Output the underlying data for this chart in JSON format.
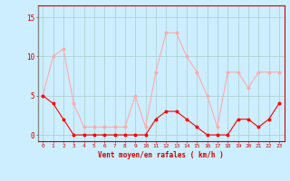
{
  "x": [
    0,
    1,
    2,
    3,
    4,
    5,
    6,
    7,
    8,
    9,
    10,
    11,
    12,
    13,
    14,
    15,
    16,
    17,
    18,
    19,
    20,
    21,
    22,
    23
  ],
  "y_mean": [
    5,
    4,
    2,
    0,
    0,
    0,
    0,
    0,
    0,
    0,
    0,
    2,
    3,
    3,
    2,
    1,
    0,
    0,
    0,
    2,
    2,
    1,
    2,
    4
  ],
  "y_gust": [
    5,
    10,
    11,
    4,
    1,
    1,
    1,
    1,
    1,
    5,
    1,
    8,
    13,
    13,
    10,
    8,
    5,
    1,
    8,
    8,
    6,
    8,
    8,
    8
  ],
  "line_color_mean": "#ff0000",
  "line_color_gust": "#ffaaaa",
  "bg_color": "#cceeff",
  "grid_color": "#aacccc",
  "xlabel": "Vent moyen/en rafales ( km/h )",
  "ylabel_ticks": [
    0,
    5,
    10,
    15
  ],
  "xlim": [
    -0.5,
    23.5
  ],
  "ylim": [
    -0.8,
    16.5
  ],
  "tick_color": "#cc0000",
  "axis_color": "#cc0000"
}
